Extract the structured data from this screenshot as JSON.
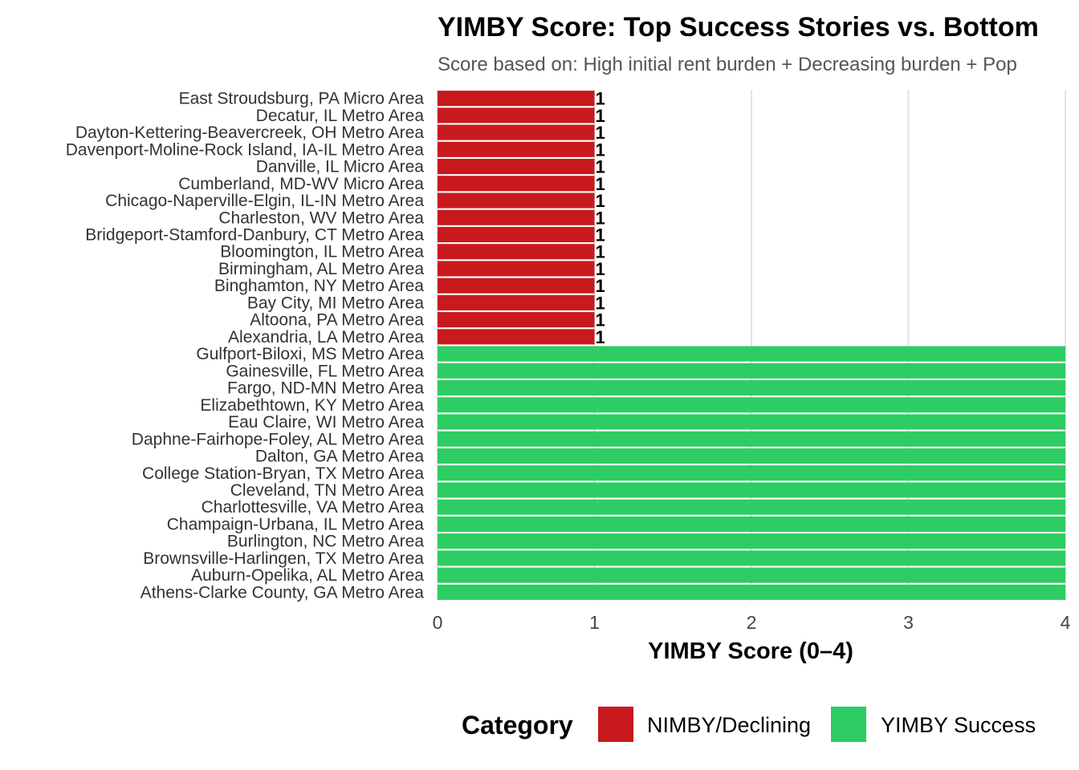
{
  "chart_data": {
    "type": "bar",
    "orientation": "horizontal",
    "title": "YIMBY Score: Top Success Stories vs. Bottom",
    "subtitle": "Score based on: High initial rent burden + Decreasing burden + Pop",
    "xlabel": "YIMBY Score (0–4)",
    "ylabel": "",
    "xlim": [
      0,
      4
    ],
    "x_ticks": [
      "0",
      "1",
      "2",
      "3",
      "4"
    ],
    "grid": true,
    "legend": {
      "title": "Category",
      "position": "bottom",
      "entries": [
        {
          "label": "NIMBY/Declining",
          "color": "#c8191e"
        },
        {
          "label": "YIMBY Success",
          "color": "#2ecc64"
        }
      ]
    },
    "categories": [
      "East Stroudsburg, PA Micro Area",
      "Decatur, IL Metro Area",
      "Dayton-Kettering-Beavercreek, OH Metro Area",
      "Davenport-Moline-Rock Island, IA-IL Metro Area",
      "Danville, IL Micro Area",
      "Cumberland, MD-WV Micro Area",
      "Chicago-Naperville-Elgin, IL-IN Metro Area",
      "Charleston, WV Metro Area",
      "Bridgeport-Stamford-Danbury, CT Metro Area",
      "Bloomington, IL Metro Area",
      "Birmingham, AL Metro Area",
      "Binghamton, NY Metro Area",
      "Bay City, MI Metro Area",
      "Altoona, PA Metro Area",
      "Alexandria, LA Metro Area",
      "Gulfport-Biloxi, MS Metro Area",
      "Gainesville, FL Metro Area",
      "Fargo, ND-MN Metro Area",
      "Elizabethtown, KY Metro Area",
      "Eau Claire, WI Metro Area",
      "Daphne-Fairhope-Foley, AL Metro Area",
      "Dalton, GA Metro Area",
      "College Station-Bryan, TX Metro Area",
      "Cleveland, TN Metro Area",
      "Charlottesville, VA Metro Area",
      "Champaign-Urbana, IL Metro Area",
      "Burlington, NC Metro Area",
      "Brownsville-Harlingen, TX Metro Area",
      "Auburn-Opelika, AL Metro Area",
      "Athens-Clarke County, GA Metro Area"
    ],
    "values": [
      1,
      1,
      1,
      1,
      1,
      1,
      1,
      1,
      1,
      1,
      1,
      1,
      1,
      1,
      1,
      4,
      4,
      4,
      4,
      4,
      4,
      4,
      4,
      4,
      4,
      4,
      4,
      4,
      4,
      4
    ],
    "groups": [
      "NIMBY/Declining",
      "NIMBY/Declining",
      "NIMBY/Declining",
      "NIMBY/Declining",
      "NIMBY/Declining",
      "NIMBY/Declining",
      "NIMBY/Declining",
      "NIMBY/Declining",
      "NIMBY/Declining",
      "NIMBY/Declining",
      "NIMBY/Declining",
      "NIMBY/Declining",
      "NIMBY/Declining",
      "NIMBY/Declining",
      "NIMBY/Declining",
      "YIMBY Success",
      "YIMBY Success",
      "YIMBY Success",
      "YIMBY Success",
      "YIMBY Success",
      "YIMBY Success",
      "YIMBY Success",
      "YIMBY Success",
      "YIMBY Success",
      "YIMBY Success",
      "YIMBY Success",
      "YIMBY Success",
      "YIMBY Success",
      "YIMBY Success",
      "YIMBY Success"
    ],
    "data_labels": [
      "1",
      "1",
      "1",
      "1",
      "1",
      "1",
      "1",
      "1",
      "1",
      "1",
      "1",
      "1",
      "1",
      "1",
      "1",
      "",
      "",
      "",
      "",
      "",
      "",
      "",
      "",
      "",
      "",
      "",
      "",
      "",
      "",
      ""
    ]
  }
}
